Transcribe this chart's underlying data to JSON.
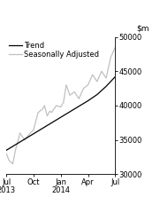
{
  "title": "",
  "ylim": [
    30000,
    50000
  ],
  "yticks": [
    30000,
    35000,
    40000,
    45000,
    50000
  ],
  "xlim_months": [
    0,
    12
  ],
  "background_color": "#ffffff",
  "trend_color": "#000000",
  "seasonal_color": "#c0c0c0",
  "trend_linewidth": 0.9,
  "seasonal_linewidth": 0.9,
  "legend_fontsize": 6,
  "tick_fontsize": 6,
  "ylabel_fontsize": 6.5,
  "trend_data": [
    [
      0,
      33500
    ],
    [
      1,
      34300
    ],
    [
      2,
      35100
    ],
    [
      3,
      35900
    ],
    [
      4,
      36700
    ],
    [
      5,
      37500
    ],
    [
      6,
      38300
    ],
    [
      7,
      39100
    ],
    [
      8,
      39900
    ],
    [
      9,
      40700
    ],
    [
      10,
      41600
    ],
    [
      11,
      42800
    ],
    [
      12,
      44200
    ]
  ],
  "seasonal_data": [
    [
      0.0,
      33000
    ],
    [
      0.3,
      32000
    ],
    [
      0.7,
      31500
    ],
    [
      1.0,
      33500
    ],
    [
      1.5,
      36000
    ],
    [
      2.0,
      35000
    ],
    [
      2.5,
      35800
    ],
    [
      3.0,
      36500
    ],
    [
      3.5,
      39000
    ],
    [
      4.0,
      39500
    ],
    [
      4.2,
      40000
    ],
    [
      4.5,
      38500
    ],
    [
      4.8,
      39200
    ],
    [
      5.0,
      39000
    ],
    [
      5.5,
      40000
    ],
    [
      6.0,
      39800
    ],
    [
      6.3,
      40500
    ],
    [
      6.6,
      43000
    ],
    [
      7.0,
      41500
    ],
    [
      7.5,
      42000
    ],
    [
      8.0,
      41000
    ],
    [
      8.5,
      42500
    ],
    [
      9.0,
      43000
    ],
    [
      9.5,
      44500
    ],
    [
      10.0,
      43500
    ],
    [
      10.5,
      45000
    ],
    [
      11.0,
      44000
    ],
    [
      11.5,
      47000
    ],
    [
      12.0,
      48500
    ]
  ],
  "x_tick_positions": [
    0,
    3,
    6,
    9,
    12
  ],
  "x_tick_labels_line1": [
    "Jul",
    "Oct",
    "Jan",
    "Apr",
    "Jul"
  ],
  "x_tick_labels_line2": [
    "2013",
    "",
    "2014",
    "",
    ""
  ]
}
